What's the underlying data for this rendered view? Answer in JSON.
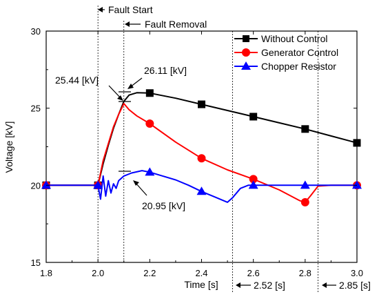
{
  "chart_data": {
    "type": "line",
    "xlabel": "Time [s]",
    "ylabel": "Voltage [kV]",
    "xlim": [
      1.8,
      3.0
    ],
    "ylim": [
      15,
      30
    ],
    "xticks": [
      "1.8",
      "2.0",
      "2.2",
      "2.4",
      "2.6",
      "2.8",
      "3.0"
    ],
    "yticks": [
      "15",
      "20",
      "25",
      "30"
    ],
    "legend_position": "top-right",
    "grid": false,
    "series": [
      {
        "name": "Without Control",
        "color": "#000000",
        "marker": "square",
        "points": [
          [
            1.8,
            20.0
          ],
          [
            1.98,
            20.0
          ],
          [
            2.0,
            20.0
          ],
          [
            2.02,
            21.4
          ],
          [
            2.04,
            22.6
          ],
          [
            2.06,
            23.7
          ],
          [
            2.08,
            24.6
          ],
          [
            2.1,
            25.44
          ],
          [
            2.12,
            25.85
          ],
          [
            2.15,
            26.0
          ],
          [
            2.2,
            25.98
          ],
          [
            2.3,
            25.65
          ],
          [
            2.4,
            25.25
          ],
          [
            2.5,
            24.85
          ],
          [
            2.6,
            24.45
          ],
          [
            2.7,
            24.05
          ],
          [
            2.8,
            23.65
          ],
          [
            2.9,
            23.2
          ],
          [
            3.0,
            22.75
          ]
        ],
        "markers_x": [
          1.8,
          2.0,
          2.2,
          2.4,
          2.6,
          2.8,
          3.0
        ]
      },
      {
        "name": "Generator Control",
        "color": "#ff0000",
        "marker": "circle",
        "points": [
          [
            1.8,
            20.0
          ],
          [
            1.98,
            20.0
          ],
          [
            2.0,
            20.0
          ],
          [
            2.02,
            21.6
          ],
          [
            2.04,
            22.7
          ],
          [
            2.06,
            23.8
          ],
          [
            2.08,
            24.6
          ],
          [
            2.1,
            25.3
          ],
          [
            2.12,
            24.9
          ],
          [
            2.15,
            24.5
          ],
          [
            2.2,
            24.0
          ],
          [
            2.3,
            22.8
          ],
          [
            2.4,
            21.75
          ],
          [
            2.5,
            21.0
          ],
          [
            2.6,
            20.4
          ],
          [
            2.7,
            19.7
          ],
          [
            2.78,
            19.0
          ],
          [
            2.8,
            18.9
          ],
          [
            2.82,
            19.3
          ],
          [
            2.85,
            19.95
          ],
          [
            2.9,
            20.0
          ],
          [
            3.0,
            20.0
          ]
        ],
        "markers_x": [
          1.8,
          2.0,
          2.2,
          2.4,
          2.6,
          2.8,
          3.0
        ]
      },
      {
        "name": "Chopper Resistor",
        "color": "#0000ff",
        "marker": "triangle",
        "points": [
          [
            1.8,
            20.0
          ],
          [
            1.98,
            20.0
          ],
          [
            2.0,
            20.0
          ],
          [
            2.01,
            19.1
          ],
          [
            2.02,
            20.6
          ],
          [
            2.03,
            19.3
          ],
          [
            2.04,
            20.3
          ],
          [
            2.05,
            19.5
          ],
          [
            2.06,
            20.1
          ],
          [
            2.07,
            19.8
          ],
          [
            2.08,
            20.3
          ],
          [
            2.1,
            20.6
          ],
          [
            2.13,
            20.8
          ],
          [
            2.17,
            20.95
          ],
          [
            2.2,
            20.85
          ],
          [
            2.25,
            20.6
          ],
          [
            2.3,
            20.35
          ],
          [
            2.35,
            20.0
          ],
          [
            2.4,
            19.6
          ],
          [
            2.45,
            19.25
          ],
          [
            2.5,
            18.9
          ],
          [
            2.52,
            19.2
          ],
          [
            2.55,
            19.8
          ],
          [
            2.58,
            20.0
          ],
          [
            2.6,
            20.0
          ],
          [
            3.0,
            20.0
          ]
        ],
        "markers_x": [
          1.8,
          2.0,
          2.2,
          2.4,
          2.6,
          2.8,
          3.0
        ]
      }
    ],
    "annotations": {
      "fault_start": {
        "text": "Fault Start",
        "x": 2.0
      },
      "fault_removal": {
        "text": "Fault Removal",
        "x": 2.1
      },
      "t1": {
        "text": "2.52 [s]",
        "x": 2.52
      },
      "t2": {
        "text": "2.85 [s]",
        "x": 2.85
      },
      "peak1": {
        "text": "25.44 [kV]",
        "x": 2.1,
        "y": 25.44
      },
      "peak2": {
        "text": "26.11 [kV]",
        "x": 2.12,
        "y": 26.11
      },
      "peak3": {
        "text": "20.95 [kV]",
        "x": 2.1,
        "y": 20.95
      }
    }
  }
}
